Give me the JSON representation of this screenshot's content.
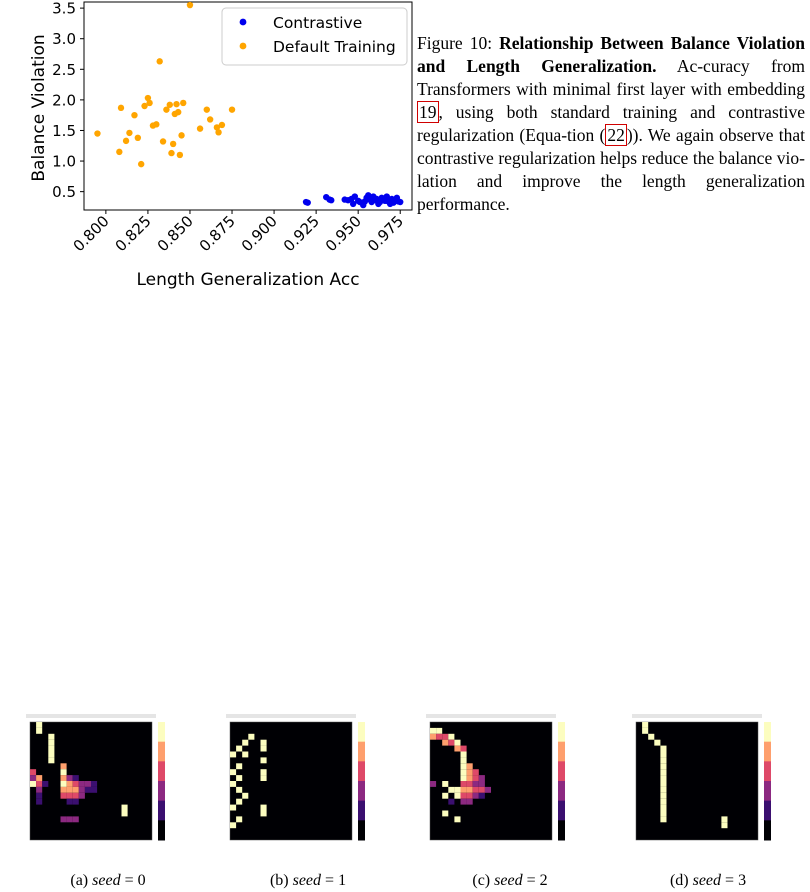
{
  "chart_data": {
    "type": "scatter",
    "xlabel": "Length Generalization Acc",
    "ylabel": "Balance Violation",
    "xlim": [
      0.787,
      0.982
    ],
    "ylim": [
      0.2,
      3.6
    ],
    "xticks": [
      "0.800",
      "0.825",
      "0.850",
      "0.875",
      "0.900",
      "0.925",
      "0.950",
      "0.975"
    ],
    "yticks": [
      "0.5",
      "1.0",
      "1.5",
      "2.0",
      "2.5",
      "3.0",
      "3.5"
    ],
    "legend_position": "top-right",
    "grid": false,
    "series": [
      {
        "name": "Contrastive",
        "color": "#0000ee",
        "points": [
          [
            0.919,
            0.33
          ],
          [
            0.92,
            0.32
          ],
          [
            0.931,
            0.41
          ],
          [
            0.933,
            0.37
          ],
          [
            0.934,
            0.36
          ],
          [
            0.942,
            0.37
          ],
          [
            0.944,
            0.36
          ],
          [
            0.946,
            0.38
          ],
          [
            0.947,
            0.3
          ],
          [
            0.948,
            0.42
          ],
          [
            0.95,
            0.35
          ],
          [
            0.951,
            0.33
          ],
          [
            0.953,
            0.28
          ],
          [
            0.954,
            0.34
          ],
          [
            0.955,
            0.4
          ],
          [
            0.956,
            0.44
          ],
          [
            0.957,
            0.37
          ],
          [
            0.958,
            0.33
          ],
          [
            0.959,
            0.42
          ],
          [
            0.96,
            0.36
          ],
          [
            0.961,
            0.38
          ],
          [
            0.962,
            0.3
          ],
          [
            0.963,
            0.33
          ],
          [
            0.964,
            0.4
          ],
          [
            0.965,
            0.37
          ],
          [
            0.966,
            0.35
          ],
          [
            0.967,
            0.42
          ],
          [
            0.968,
            0.34
          ],
          [
            0.969,
            0.3
          ],
          [
            0.97,
            0.38
          ],
          [
            0.971,
            0.32
          ],
          [
            0.972,
            0.36
          ],
          [
            0.973,
            0.4
          ],
          [
            0.974,
            0.34
          ],
          [
            0.975,
            0.33
          ]
        ]
      },
      {
        "name": "Default Training",
        "color": "#ffa500",
        "points": [
          [
            0.795,
            1.45
          ],
          [
            0.808,
            1.15
          ],
          [
            0.809,
            1.87
          ],
          [
            0.812,
            1.33
          ],
          [
            0.814,
            1.46
          ],
          [
            0.817,
            1.75
          ],
          [
            0.819,
            1.38
          ],
          [
            0.821,
            0.95
          ],
          [
            0.823,
            1.9
          ],
          [
            0.825,
            2.03
          ],
          [
            0.826,
            1.95
          ],
          [
            0.828,
            1.58
          ],
          [
            0.83,
            1.6
          ],
          [
            0.832,
            2.63
          ],
          [
            0.834,
            1.32
          ],
          [
            0.836,
            1.84
          ],
          [
            0.838,
            1.92
          ],
          [
            0.839,
            1.13
          ],
          [
            0.84,
            1.28
          ],
          [
            0.841,
            1.77
          ],
          [
            0.842,
            1.93
          ],
          [
            0.843,
            1.8
          ],
          [
            0.844,
            1.1
          ],
          [
            0.845,
            1.42
          ],
          [
            0.846,
            1.95
          ],
          [
            0.85,
            3.55
          ],
          [
            0.856,
            1.53
          ],
          [
            0.86,
            1.84
          ],
          [
            0.862,
            1.68
          ],
          [
            0.866,
            1.55
          ],
          [
            0.867,
            1.47
          ],
          [
            0.869,
            1.59
          ],
          [
            0.875,
            1.84
          ]
        ]
      }
    ]
  },
  "caption": {
    "label": "Figure 10:",
    "title": "Relationship Between Balance Violation and Length Generalization.",
    "text1": " Ac-curacy from Transformers with minimal first layer with embedding ",
    "ref1": "19",
    "text2": ", using both standard training and contrastive regularization (Equa-tion (",
    "ref2": "22",
    "text3": ")). We again observe that contrastive regularization helps reduce the balance vio-lation and improve the length generalization performance."
  },
  "subfigures": [
    {
      "label": "(a)",
      "var": "seed",
      "value": "0"
    },
    {
      "label": "(b)",
      "var": "seed",
      "value": "1"
    },
    {
      "label": "(c)",
      "var": "seed",
      "value": "2"
    },
    {
      "label": "(d)",
      "var": "seed",
      "value": "3"
    }
  ],
  "heatmaps": [
    {
      "colors": [
        "#000004",
        "#3b0f70",
        "#8c2981",
        "#de4968",
        "#fe9f6d",
        "#fcfdbf"
      ],
      "cells": [
        [
          1,
          0,
          5
        ],
        [
          1,
          1,
          5
        ],
        [
          3,
          2,
          5
        ],
        [
          3,
          3,
          5
        ],
        [
          3,
          4,
          5
        ],
        [
          3,
          5,
          5
        ],
        [
          3,
          6,
          5
        ],
        [
          5,
          7,
          4
        ],
        [
          5,
          8,
          5
        ],
        [
          0,
          8,
          3
        ],
        [
          0,
          9,
          2
        ],
        [
          1,
          9,
          4
        ],
        [
          5,
          9,
          4
        ],
        [
          6,
          9,
          2
        ],
        [
          7,
          9,
          1
        ],
        [
          0,
          10,
          5
        ],
        [
          1,
          10,
          3
        ],
        [
          2,
          10,
          1
        ],
        [
          5,
          10,
          5
        ],
        [
          6,
          10,
          4
        ],
        [
          7,
          10,
          3
        ],
        [
          8,
          10,
          2
        ],
        [
          9,
          10,
          2
        ],
        [
          10,
          10,
          1
        ],
        [
          1,
          11,
          2
        ],
        [
          5,
          11,
          4
        ],
        [
          6,
          11,
          4
        ],
        [
          7,
          11,
          4
        ],
        [
          8,
          11,
          2
        ],
        [
          9,
          11,
          1
        ],
        [
          10,
          11,
          1
        ],
        [
          1,
          12,
          1
        ],
        [
          5,
          12,
          3
        ],
        [
          6,
          12,
          3
        ],
        [
          7,
          12,
          3
        ],
        [
          8,
          12,
          2
        ],
        [
          1,
          13,
          1
        ],
        [
          6,
          13,
          1
        ],
        [
          7,
          13,
          1
        ],
        [
          15,
          14,
          5
        ],
        [
          15,
          15,
          5
        ],
        [
          5,
          16,
          2
        ],
        [
          6,
          16,
          2
        ],
        [
          7,
          16,
          2
        ]
      ]
    },
    {
      "colors": [
        "#000004",
        "#3b0f70",
        "#8c2981",
        "#de4968",
        "#fe9f6d",
        "#fcfdbf"
      ],
      "cells": [
        [
          3,
          2,
          5
        ],
        [
          2,
          3,
          5
        ],
        [
          1,
          4,
          5
        ],
        [
          0,
          5,
          5
        ],
        [
          5,
          3,
          5
        ],
        [
          5,
          4,
          5
        ],
        [
          5,
          6,
          5
        ],
        [
          5,
          8,
          5
        ],
        [
          5,
          9,
          5
        ],
        [
          2,
          5,
          5
        ],
        [
          1,
          7,
          5
        ],
        [
          0,
          8,
          5
        ],
        [
          1,
          9,
          5
        ],
        [
          0,
          10,
          5
        ],
        [
          1,
          11,
          5
        ],
        [
          2,
          12,
          5
        ],
        [
          1,
          13,
          5
        ],
        [
          0,
          14,
          5
        ],
        [
          5,
          14,
          5
        ],
        [
          5,
          15,
          5
        ],
        [
          0,
          17,
          5
        ],
        [
          1,
          16,
          5
        ]
      ]
    },
    {
      "colors": [
        "#000004",
        "#3b0f70",
        "#8c2981",
        "#de4968",
        "#fe9f6d",
        "#fcfdbf"
      ],
      "cells": [
        [
          0,
          1,
          5
        ],
        [
          1,
          1,
          5
        ],
        [
          0,
          2,
          4
        ],
        [
          1,
          2,
          3
        ],
        [
          2,
          2,
          3
        ],
        [
          3,
          2,
          5
        ],
        [
          2,
          3,
          4
        ],
        [
          3,
          3,
          3
        ],
        [
          4,
          3,
          5
        ],
        [
          4,
          4,
          4
        ],
        [
          5,
          4,
          3
        ],
        [
          5,
          5,
          5
        ],
        [
          5,
          6,
          5
        ],
        [
          5,
          7,
          5
        ],
        [
          6,
          7,
          4
        ],
        [
          5,
          8,
          5
        ],
        [
          6,
          8,
          4
        ],
        [
          7,
          8,
          3
        ],
        [
          5,
          9,
          5
        ],
        [
          6,
          9,
          4
        ],
        [
          7,
          9,
          3
        ],
        [
          8,
          9,
          2
        ],
        [
          0,
          10,
          2
        ],
        [
          2,
          10,
          5
        ],
        [
          5,
          10,
          3
        ],
        [
          6,
          10,
          3
        ],
        [
          7,
          10,
          2
        ],
        [
          8,
          10,
          2
        ],
        [
          3,
          11,
          5
        ],
        [
          4,
          11,
          5
        ],
        [
          5,
          11,
          4
        ],
        [
          6,
          11,
          4
        ],
        [
          7,
          11,
          3
        ],
        [
          8,
          11,
          3
        ],
        [
          9,
          11,
          2
        ],
        [
          2,
          12,
          5
        ],
        [
          4,
          12,
          5
        ],
        [
          5,
          12,
          3
        ],
        [
          6,
          12,
          3
        ],
        [
          7,
          12,
          2
        ],
        [
          8,
          12,
          1
        ],
        [
          3,
          13,
          1
        ],
        [
          5,
          13,
          2
        ],
        [
          6,
          13,
          2
        ],
        [
          2,
          15,
          5
        ],
        [
          4,
          16,
          5
        ]
      ]
    },
    {
      "colors": [
        "#000004",
        "#3b0f70",
        "#8c2981",
        "#de4968",
        "#fe9f6d",
        "#fcfdbf"
      ],
      "cells": [
        [
          1,
          0,
          5
        ],
        [
          1,
          1,
          5
        ],
        [
          2,
          2,
          5
        ],
        [
          3,
          3,
          5
        ],
        [
          4,
          4,
          5
        ],
        [
          4,
          5,
          5
        ],
        [
          4,
          6,
          5
        ],
        [
          4,
          7,
          5
        ],
        [
          4,
          8,
          5
        ],
        [
          4,
          9,
          5
        ],
        [
          4,
          10,
          5
        ],
        [
          4,
          11,
          5
        ],
        [
          4,
          12,
          5
        ],
        [
          4,
          13,
          5
        ],
        [
          4,
          14,
          5
        ],
        [
          4,
          15,
          5
        ],
        [
          4,
          16,
          5
        ],
        [
          14,
          16,
          5
        ],
        [
          14,
          17,
          5
        ]
      ]
    }
  ]
}
